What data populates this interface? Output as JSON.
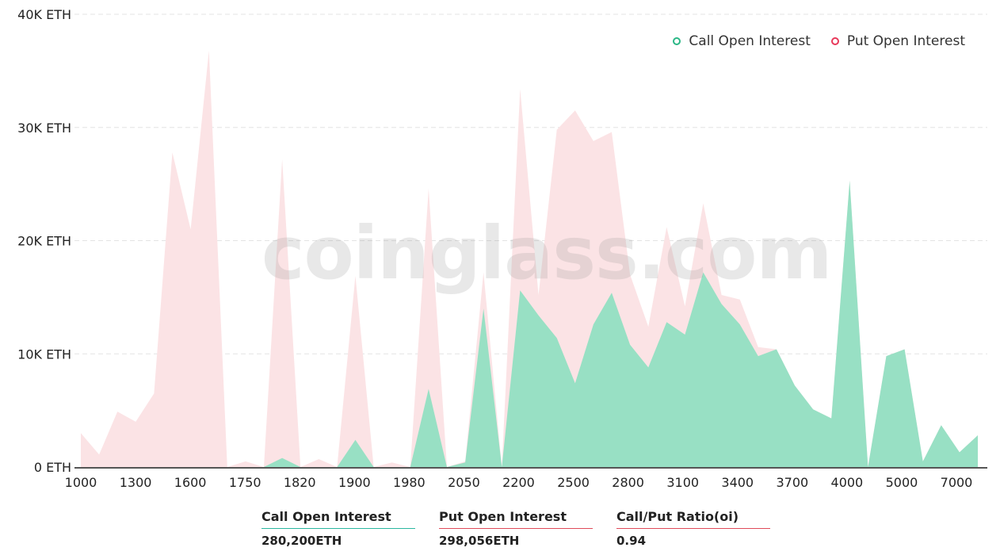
{
  "chart_data": {
    "type": "area",
    "y_unit": "ETH",
    "ylim": [
      0,
      40000
    ],
    "y_ticks": [
      "0 ETH",
      "10K ETH",
      "20K ETH",
      "30K ETH",
      "40K ETH"
    ],
    "grid": true,
    "legend_position": "top-right",
    "x_tick_labels": [
      "1000",
      "1300",
      "1600",
      "1750",
      "1820",
      "1900",
      "1980",
      "2050",
      "2200",
      "2500",
      "2800",
      "3100",
      "3400",
      "3700",
      "4000",
      "5000",
      "7000"
    ],
    "series": [
      {
        "name": "Put  Open Interest",
        "color": "#fbe3e5",
        "values": [
          3000,
          1100,
          4900,
          4000,
          6500,
          27800,
          21000,
          36800,
          0,
          500,
          0,
          27200,
          0,
          700,
          0,
          16900,
          0,
          400,
          0,
          24600,
          0,
          500,
          17200,
          0,
          33400,
          15200,
          29800,
          31500,
          28800,
          29600,
          17000,
          12400,
          21200,
          14200,
          23300,
          15200,
          14800,
          10600,
          10400,
          7200,
          5100,
          4300,
          25300,
          0,
          9800,
          10400,
          500,
          3700,
          1300,
          2800
        ]
      },
      {
        "name": "Call Open Interest",
        "color": "#98e0c4",
        "values": [
          0,
          0,
          0,
          0,
          0,
          0,
          0,
          0,
          0,
          0,
          0,
          800,
          0,
          0,
          0,
          2400,
          0,
          0,
          0,
          6900,
          0,
          400,
          14000,
          0,
          15600,
          13400,
          11400,
          7400,
          12600,
          15400,
          10800,
          8800,
          12800,
          11700,
          17200,
          14400,
          12600,
          9800,
          10400,
          7200,
          5100,
          4300,
          25300,
          0,
          9800,
          10400,
          500,
          3700,
          1300,
          2800
        ]
      }
    ]
  },
  "legend": {
    "call_label": "Call Open Interest",
    "put_label": "Put  Open Interest",
    "call_color": "#2bb786",
    "put_color": "#e8395a"
  },
  "watermark": "coinglass.com",
  "stats": {
    "call_label": "Call Open Interest",
    "call_value": "280,200ETH",
    "put_label": "Put Open Interest",
    "put_value": "298,056ETH",
    "ratio_label": "Call/Put Ratio(oi)",
    "ratio_value": "0.94"
  }
}
